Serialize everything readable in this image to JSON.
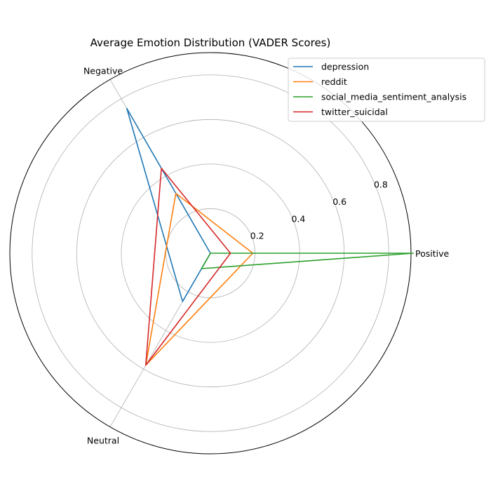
{
  "chart_data": {
    "type": "radar",
    "title": "Average Emotion Distribution (VADER Scores)",
    "axes": [
      "Positive",
      "Negative",
      "Neutral"
    ],
    "r_ticks": [
      "0.2",
      "0.4",
      "0.6",
      "0.8"
    ],
    "r_max": 0.9,
    "grid": true,
    "legend_position": "top-right",
    "series": [
      {
        "name": "depression",
        "color": "#1f77b4",
        "values": [
          0.0,
          0.75,
          0.25
        ]
      },
      {
        "name": "reddit",
        "color": "#ff7f0e",
        "values": [
          0.19,
          0.31,
          0.58
        ]
      },
      {
        "name": "social_media_sentiment_analysis",
        "color": "#2ca02c",
        "values": [
          0.91,
          0.0,
          0.08
        ]
      },
      {
        "name": "twitter_suicidal",
        "color": "#d62728",
        "values": [
          0.09,
          0.44,
          0.58
        ]
      }
    ]
  }
}
